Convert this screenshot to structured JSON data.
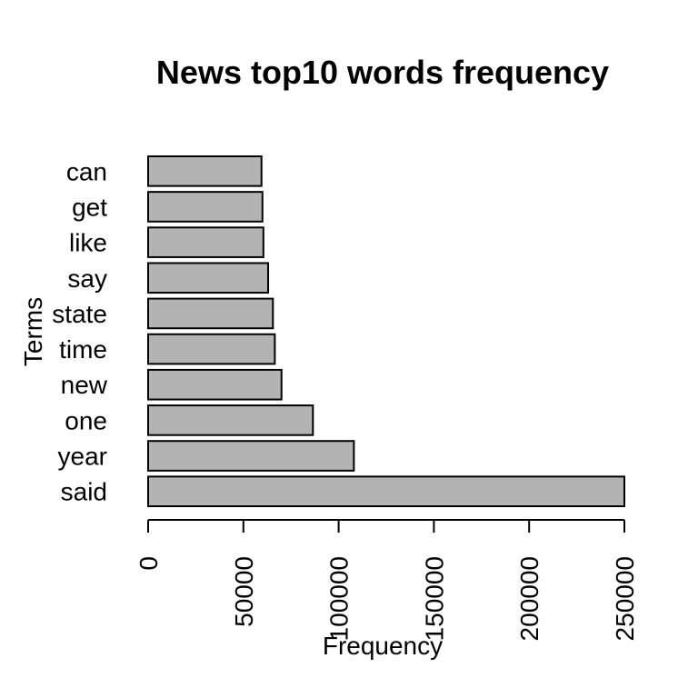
{
  "chart_data": {
    "type": "bar",
    "orientation": "horizontal",
    "title": "News top10 words frequency",
    "xlabel": "Frequency",
    "ylabel": "Terms",
    "categories": [
      "said",
      "year",
      "one",
      "new",
      "time",
      "state",
      "say",
      "like",
      "get",
      "can"
    ],
    "values": [
      250000,
      108000,
      86500,
      70000,
      66500,
      65500,
      63000,
      60500,
      60000,
      59500
    ],
    "xlim": [
      0,
      250000
    ],
    "xticks": [
      0,
      50000,
      100000,
      150000,
      200000,
      250000
    ],
    "xtick_labels": [
      "0",
      "50000",
      "100000",
      "150000",
      "200000",
      "250000"
    ],
    "grid": false,
    "legend": "none",
    "bar_color": "#b3b3b3",
    "bar_edge_color": "#000000"
  }
}
